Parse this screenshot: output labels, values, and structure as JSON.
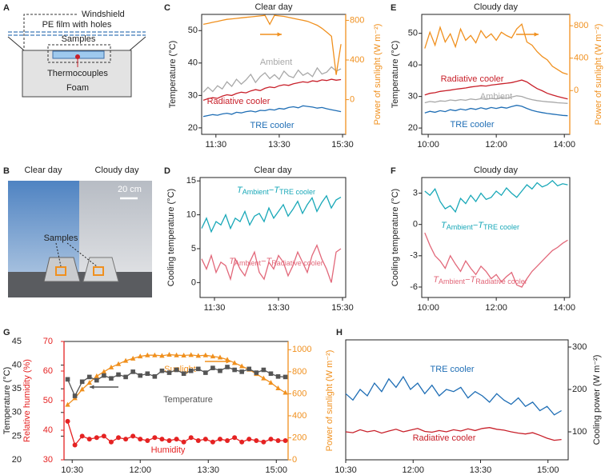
{
  "figure_a": {
    "panel": "A",
    "windshield": "Windshield",
    "film": "PE film with holes",
    "samples": "Samples",
    "thermocouples": "Thermocouples",
    "foam": "Foam"
  },
  "figure_b": {
    "panel": "B",
    "left": "Clear day",
    "right": "Cloudy day",
    "scale": "20 cm",
    "samples": "Samples"
  },
  "chart_data": [
    {
      "type": "line",
      "panel": "C",
      "title": "Clear day",
      "ylabel": "Temperature (°C)",
      "y2label": "Power of sunlight (W m⁻²)",
      "x": [
        11.1,
        11.25,
        11.4,
        11.55,
        11.7,
        11.85,
        12.0,
        12.15,
        12.3,
        12.45,
        12.6,
        12.75,
        12.9,
        13.05,
        13.2,
        13.35,
        13.5,
        13.65,
        13.8,
        13.95,
        14.1,
        14.25,
        14.4,
        14.55,
        14.7,
        14.85,
        15.0,
        15.15,
        15.3,
        15.45
      ],
      "xlim": [
        11.05,
        15.6
      ],
      "xticks": [
        {
          "value": 11.5,
          "label": "11:30"
        },
        {
          "value": 13.5,
          "label": "13:30"
        },
        {
          "value": 15.5,
          "label": "15:30"
        }
      ],
      "ylim": [
        18,
        55
      ],
      "yticks": [
        20,
        30,
        40,
        50
      ],
      "y2lim": [
        -350,
        860
      ],
      "y2ticks": [
        0,
        400,
        800
      ],
      "series": [
        {
          "name": "TRE cooler",
          "color": "#1f6eb5",
          "values": [
            23.5,
            23.8,
            24.1,
            23.9,
            24.3,
            24.5,
            24.2,
            24.8,
            24.6,
            25.0,
            25.2,
            24.9,
            25.4,
            25.3,
            25.7,
            25.5,
            26.0,
            25.8,
            26.3,
            26.5,
            26.2,
            26.8,
            26.6,
            26.4,
            26.1,
            26.3,
            25.9,
            25.6,
            25.3,
            25.0
          ]
        },
        {
          "name": "Radiative cooler",
          "color": "#c8202a",
          "values": [
            28.5,
            29.0,
            29.3,
            29.1,
            29.8,
            30.2,
            30.0,
            30.6,
            31.0,
            30.8,
            31.4,
            31.8,
            31.5,
            32.2,
            32.6,
            32.4,
            33.0,
            33.3,
            33.1,
            33.6,
            33.9,
            34.2,
            34.0,
            34.5,
            34.3,
            34.8,
            34.6,
            35.0,
            34.7,
            34.9
          ]
        },
        {
          "name": "Ambient",
          "color": "#a8a8a8",
          "values": [
            31.0,
            32.5,
            31.2,
            33.0,
            32.0,
            34.2,
            32.8,
            35.0,
            33.5,
            34.8,
            36.5,
            34.0,
            35.8,
            37.0,
            35.2,
            36.4,
            35.0,
            37.5,
            36.0,
            35.5,
            37.8,
            36.2,
            37.0,
            35.8,
            38.5,
            36.6,
            37.2,
            38.8,
            37.5,
            38.2
          ]
        },
        {
          "color": "#f0901e",
          "axis": "y2",
          "values": [
            760,
            770,
            780,
            790,
            800,
            810,
            815,
            820,
            825,
            830,
            835,
            840,
            845,
            850,
            760,
            850,
            845,
            840,
            830,
            820,
            810,
            800,
            790,
            770,
            750,
            720,
            680,
            640,
            250,
            560
          ]
        }
      ]
    },
    {
      "type": "line",
      "panel": "D",
      "title": "Clear day",
      "ylabel": "Cooling temperature (°C)",
      "x": [
        11.1,
        11.25,
        11.4,
        11.55,
        11.7,
        11.85,
        12.0,
        12.15,
        12.3,
        12.45,
        12.6,
        12.75,
        12.9,
        13.05,
        13.2,
        13.35,
        13.5,
        13.65,
        13.8,
        13.95,
        14.1,
        14.25,
        14.4,
        14.55,
        14.7,
        14.85,
        15.0,
        15.15,
        15.3,
        15.45
      ],
      "xlim": [
        11.05,
        15.6
      ],
      "xticks": [
        {
          "value": 11.5,
          "label": "11:30"
        },
        {
          "value": 13.5,
          "label": "13:30"
        },
        {
          "value": 15.5,
          "label": "15:30"
        }
      ],
      "ylim": [
        -2.2,
        15.5
      ],
      "yticks": [
        0,
        5,
        10,
        15
      ],
      "series": [
        {
          "name": [
            "T",
            "Ambient",
            "−T",
            "TRE cooler"
          ],
          "color": "#19a8b8",
          "values": [
            8.0,
            9.5,
            7.5,
            9.0,
            8.5,
            10.0,
            8.0,
            9.5,
            9.0,
            10.5,
            8.5,
            9.8,
            10.2,
            9.0,
            11.0,
            9.5,
            10.5,
            11.5,
            9.8,
            10.8,
            12.0,
            10.2,
            11.5,
            12.5,
            10.5,
            11.8,
            12.8,
            11.0,
            12.2,
            12.6
          ]
        },
        {
          "name": [
            "T",
            "Ambient",
            "−T",
            "Radiative cooler"
          ],
          "color": "#e2687a",
          "values": [
            3.5,
            2.0,
            4.0,
            1.5,
            3.0,
            2.5,
            0.5,
            3.5,
            2.0,
            1.0,
            3.0,
            4.5,
            1.5,
            0.5,
            3.0,
            2.0,
            4.0,
            3.0,
            1.0,
            2.5,
            4.5,
            3.0,
            1.5,
            4.0,
            5.5,
            3.5,
            2.0,
            0.0,
            4.5,
            5.0
          ]
        }
      ]
    },
    {
      "type": "line",
      "panel": "E",
      "title": "Cloudy day",
      "ylabel": "Temperature (°C)",
      "y2label": "Power of sunlight (W m⁻²)",
      "x": [
        9.9,
        10.05,
        10.2,
        10.35,
        10.5,
        10.65,
        10.8,
        10.95,
        11.1,
        11.25,
        11.4,
        11.55,
        11.7,
        11.85,
        12.0,
        12.15,
        12.3,
        12.45,
        12.6,
        12.75,
        12.9,
        13.05,
        13.2,
        13.35,
        13.5,
        13.65,
        13.8,
        13.95,
        14.1
      ],
      "xlim": [
        9.81,
        14.16
      ],
      "xticks": [
        {
          "value": 10,
          "label": "10:00"
        },
        {
          "value": 12,
          "label": "12:00"
        },
        {
          "value": 14,
          "label": "14:00"
        }
      ],
      "ylim": [
        18,
        56
      ],
      "yticks": [
        20,
        30,
        40,
        50
      ],
      "y2lim": [
        -540,
        940
      ],
      "y2ticks": [
        0,
        400,
        800
      ],
      "series": [
        {
          "name": "TRE cooler",
          "color": "#1f6eb5",
          "values": [
            24.8,
            25.3,
            25.0,
            25.5,
            25.2,
            25.8,
            25.5,
            26.0,
            25.7,
            26.2,
            25.9,
            26.4,
            26.0,
            26.5,
            26.2,
            26.6,
            26.3,
            26.8,
            27.2,
            26.9,
            26.2,
            25.6,
            25.2,
            24.9,
            24.6,
            24.4,
            24.2,
            24.0,
            23.9
          ]
        },
        {
          "name": "Radiative cooler",
          "color": "#c8202a",
          "values": [
            30.5,
            31.0,
            31.2,
            31.6,
            31.8,
            32.0,
            32.3,
            32.5,
            32.7,
            33.0,
            33.2,
            33.4,
            33.3,
            33.6,
            33.8,
            34.0,
            34.2,
            34.4,
            34.8,
            35.2,
            34.6,
            33.5,
            32.5,
            31.8,
            31.0,
            30.5,
            30.0,
            29.6,
            29.2
          ]
        },
        {
          "name": "Ambient",
          "color": "#a8a8a8",
          "values": [
            28.0,
            28.4,
            28.2,
            28.6,
            28.5,
            28.9,
            28.7,
            29.0,
            28.8,
            29.2,
            29.0,
            29.3,
            29.1,
            29.4,
            29.2,
            29.6,
            29.4,
            29.8,
            30.2,
            30.0,
            29.4,
            29.0,
            28.7,
            28.5,
            28.3,
            28.2,
            28.0,
            27.9,
            27.8
          ]
        },
        {
          "color": "#f0901e",
          "axis": "y2",
          "values": [
            520,
            720,
            560,
            780,
            600,
            700,
            540,
            760,
            620,
            680,
            590,
            740,
            650,
            700,
            620,
            720,
            680,
            650,
            760,
            820,
            600,
            560,
            480,
            420,
            380,
            300,
            260,
            220,
            200
          ]
        }
      ]
    },
    {
      "type": "line",
      "panel": "F",
      "title": "Cloudy day",
      "ylabel": "Cooling temperature (°C)",
      "x": [
        9.9,
        10.05,
        10.2,
        10.35,
        10.5,
        10.65,
        10.8,
        10.95,
        11.1,
        11.25,
        11.4,
        11.55,
        11.7,
        11.85,
        12.0,
        12.15,
        12.3,
        12.45,
        12.6,
        12.75,
        12.9,
        13.05,
        13.2,
        13.35,
        13.5,
        13.65,
        13.8,
        13.95,
        14.1
      ],
      "xlim": [
        9.81,
        14.16
      ],
      "xticks": [
        {
          "value": 10,
          "label": "10:00"
        },
        {
          "value": 12,
          "label": "12:00"
        },
        {
          "value": 14,
          "label": "14:00"
        }
      ],
      "ylim": [
        -7.0,
        4.5
      ],
      "yticks": [
        -6,
        -3,
        0,
        3
      ],
      "series": [
        {
          "name": [
            "T",
            "Ambient",
            "−T",
            "TRE cooler"
          ],
          "color": "#19a8b8",
          "values": [
            3.2,
            2.8,
            3.4,
            2.2,
            1.5,
            1.8,
            1.2,
            2.5,
            2.0,
            2.8,
            2.2,
            3.0,
            2.4,
            2.6,
            3.2,
            2.8,
            3.5,
            3.0,
            2.6,
            3.2,
            3.8,
            3.4,
            4.0,
            3.6,
            3.8,
            4.2,
            3.7,
            3.9,
            3.8
          ]
        },
        {
          "name": [
            "T",
            "Ambient",
            "−T",
            "Radiative cooler"
          ],
          "color": "#e2687a",
          "values": [
            -0.8,
            -2.0,
            -3.0,
            -3.5,
            -4.2,
            -3.0,
            -3.8,
            -4.5,
            -3.5,
            -4.2,
            -4.8,
            -4.0,
            -4.5,
            -5.2,
            -4.8,
            -5.5,
            -5.0,
            -4.6,
            -5.8,
            -6.0,
            -5.2,
            -4.5,
            -4.0,
            -3.5,
            -3.0,
            -2.5,
            -2.2,
            -1.8,
            -1.5
          ]
        }
      ]
    },
    {
      "type": "line",
      "panel": "G",
      "ylabel": "Temperature (°C)",
      "y2label": "Relative humidity (%)",
      "y3label": "Power of sunlight (W m⁻²)",
      "x": [
        10.4,
        10.56,
        10.72,
        10.88,
        11.04,
        11.2,
        11.36,
        11.52,
        11.68,
        11.84,
        12.0,
        12.16,
        12.32,
        12.48,
        12.64,
        12.8,
        12.96,
        13.12,
        13.28,
        13.44,
        13.6,
        13.76,
        13.92,
        14.08,
        14.24,
        14.4,
        14.56,
        14.72,
        14.88,
        15.04,
        15.2
      ],
      "xlim": [
        10.32,
        15.26
      ],
      "xticks": [
        {
          "value": 10.5,
          "label": "10:30"
        },
        {
          "value": 12,
          "label": "12:00"
        },
        {
          "value": 13.5,
          "label": "13:30"
        },
        {
          "value": 15,
          "label": "15:00"
        }
      ],
      "ylim": [
        20,
        45
      ],
      "yticks": [
        20,
        25,
        30,
        35,
        40,
        45
      ],
      "y2lim": [
        30,
        70
      ],
      "y2ticks": [
        30,
        40,
        50,
        60,
        70
      ],
      "y3lim": [
        0,
        1075
      ],
      "y3ticks": [
        0,
        200,
        400,
        600,
        800,
        1000
      ],
      "series": [
        {
          "name": "Sunlight",
          "color": "#f0901e",
          "axis": "y3",
          "marker": "triangle",
          "values": [
            500,
            560,
            640,
            700,
            760,
            800,
            840,
            870,
            900,
            920,
            940,
            950,
            950,
            945,
            955,
            950,
            948,
            952,
            945,
            950,
            940,
            930,
            910,
            880,
            850,
            820,
            780,
            740,
            700,
            650,
            610
          ]
        },
        {
          "name": "Temperature",
          "color": "#555555",
          "marker": "square",
          "values": [
            37.0,
            33.5,
            36.5,
            37.5,
            36.8,
            37.8,
            37.2,
            38.0,
            37.5,
            38.6,
            37.8,
            38.2,
            37.6,
            38.8,
            38.4,
            39.0,
            38.2,
            38.8,
            39.2,
            38.4,
            39.4,
            38.8,
            39.6,
            39.0,
            38.6,
            39.2,
            38.4,
            39.0,
            38.2,
            37.6,
            37.5
          ]
        },
        {
          "name": "Humidity",
          "color": "#e52222",
          "axis": "y2",
          "marker": "circle",
          "values": [
            43,
            35,
            38,
            37,
            37.5,
            38,
            36,
            37.5,
            37,
            38,
            37,
            36.5,
            37.5,
            37,
            36.5,
            37,
            36,
            37.5,
            36.5,
            37,
            36,
            37,
            36.5,
            37.5,
            36,
            37,
            36.5,
            36,
            37,
            36.5,
            36.5
          ]
        }
      ]
    },
    {
      "type": "line",
      "panel": "H",
      "ylabel": "Cooling power (W m⁻²)",
      "x": [
        10.5,
        10.66,
        10.82,
        10.98,
        11.14,
        11.3,
        11.46,
        11.62,
        11.78,
        11.94,
        12.1,
        12.26,
        12.42,
        12.58,
        12.74,
        12.9,
        13.06,
        13.22,
        13.38,
        13.54,
        13.7,
        13.86,
        14.02,
        14.18,
        14.34,
        14.5,
        14.66,
        14.82,
        14.98,
        15.14,
        15.3
      ],
      "xlim": [
        10.5,
        15.45
      ],
      "xticks": [
        {
          "value": 10.5,
          "label": "10:30"
        },
        {
          "value": 12,
          "label": "12:00"
        },
        {
          "value": 13.5,
          "label": "13:30"
        },
        {
          "value": 15,
          "label": "15:00"
        }
      ],
      "ylim": [
        34,
        317
      ],
      "yticks": [
        100,
        200,
        300
      ],
      "series": [
        {
          "name": "TRE cooler",
          "color": "#1f6eb5",
          "values": [
            190,
            175,
            200,
            185,
            215,
            195,
            225,
            205,
            230,
            200,
            215,
            190,
            210,
            185,
            200,
            195,
            205,
            180,
            195,
            185,
            170,
            190,
            175,
            165,
            180,
            160,
            170,
            150,
            160,
            140,
            150
          ]
        },
        {
          "name": "Radiative cooler",
          "color": "#c8202a",
          "values": [
            100,
            98,
            105,
            100,
            103,
            97,
            102,
            106,
            100,
            104,
            108,
            101,
            99,
            103,
            100,
            105,
            102,
            107,
            103,
            108,
            110,
            106,
            104,
            100,
            97,
            95,
            98,
            92,
            85,
            80,
            82
          ]
        }
      ]
    }
  ]
}
